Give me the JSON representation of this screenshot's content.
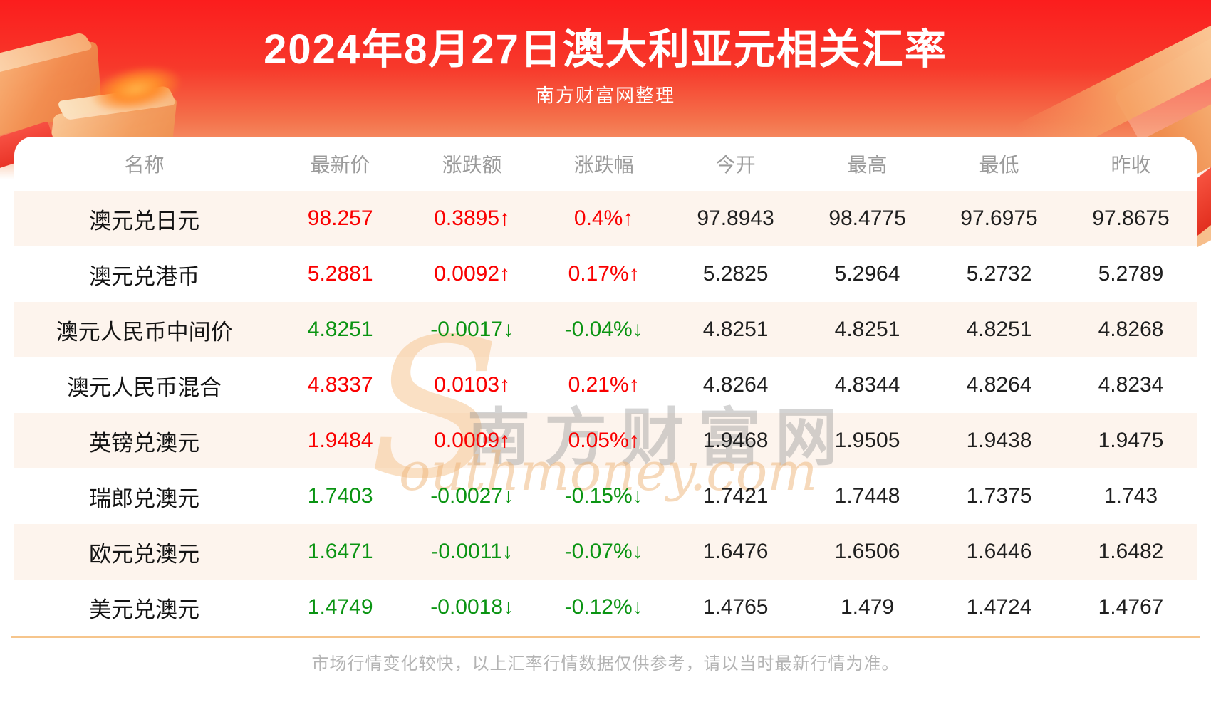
{
  "page": {
    "title": "2024年8月27日澳大利亚元相关汇率",
    "subtitle": "南方财富网整理",
    "footer_note": "市场行情变化较快，以上汇率行情数据仅供参考，请以当时最新行情为准。"
  },
  "watermark": {
    "swoosh": "S",
    "cn": "南方财富网",
    "en": "outhmoney.com"
  },
  "colors": {
    "banner_red": "#fa1f1c",
    "banner_peach": "#f8ab7c",
    "up_red": "#fa0000",
    "down_green": "#0a9412",
    "row_alt_bg": "#fdf4ed",
    "divider": "#f6c58c",
    "header_gray": "#9b9b9b",
    "footer_gray": "#b3b3b3"
  },
  "chart_data": {
    "type": "table",
    "title": "2024年8月27日澳大利亚元相关汇率",
    "subtitle": "南方财富网整理",
    "columns": [
      "名称",
      "最新价",
      "涨跌额",
      "涨跌幅",
      "今开",
      "最高",
      "最低",
      "昨收"
    ],
    "rows": [
      {
        "name": "澳元兑日元",
        "latest": "98.257",
        "change": "0.3895↑",
        "pct": "0.4%↑",
        "open": "97.8943",
        "high": "98.4775",
        "low": "97.6975",
        "prev": "97.8675",
        "dir": "up"
      },
      {
        "name": "澳元兑港币",
        "latest": "5.2881",
        "change": "0.0092↑",
        "pct": "0.17%↑",
        "open": "5.2825",
        "high": "5.2964",
        "low": "5.2732",
        "prev": "5.2789",
        "dir": "up"
      },
      {
        "name": "澳元人民币中间价",
        "latest": "4.8251",
        "change": "-0.0017↓",
        "pct": "-0.04%↓",
        "open": "4.8251",
        "high": "4.8251",
        "low": "4.8251",
        "prev": "4.8268",
        "dir": "down"
      },
      {
        "name": "澳元人民币混合",
        "latest": "4.8337",
        "change": "0.0103↑",
        "pct": "0.21%↑",
        "open": "4.8264",
        "high": "4.8344",
        "low": "4.8264",
        "prev": "4.8234",
        "dir": "up"
      },
      {
        "name": "英镑兑澳元",
        "latest": "1.9484",
        "change": "0.0009↑",
        "pct": "0.05%↑",
        "open": "1.9468",
        "high": "1.9505",
        "low": "1.9438",
        "prev": "1.9475",
        "dir": "up"
      },
      {
        "name": "瑞郎兑澳元",
        "latest": "1.7403",
        "change": "-0.0027↓",
        "pct": "-0.15%↓",
        "open": "1.7421",
        "high": "1.7448",
        "low": "1.7375",
        "prev": "1.743",
        "dir": "down"
      },
      {
        "name": "欧元兑澳元",
        "latest": "1.6471",
        "change": "-0.0011↓",
        "pct": "-0.07%↓",
        "open": "1.6476",
        "high": "1.6506",
        "low": "1.6446",
        "prev": "1.6482",
        "dir": "down"
      },
      {
        "name": "美元兑澳元",
        "latest": "1.4749",
        "change": "-0.0018↓",
        "pct": "-0.12%↓",
        "open": "1.4765",
        "high": "1.479",
        "low": "1.4724",
        "prev": "1.4767",
        "dir": "down"
      }
    ]
  }
}
